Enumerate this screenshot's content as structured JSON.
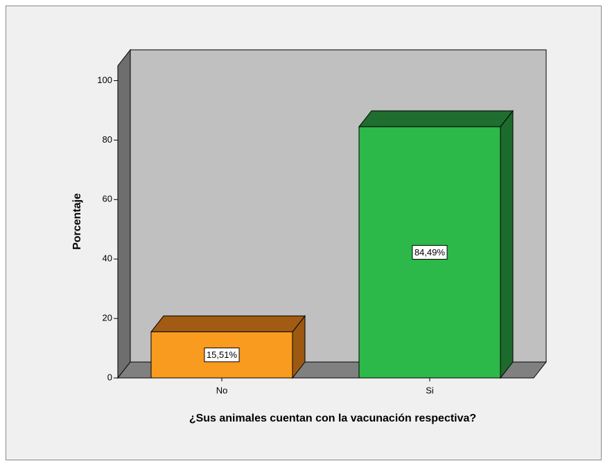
{
  "chart_data": {
    "type": "bar3d",
    "x_label": "¿Sus animales cuentan con la vacunación respectiva?",
    "y_label": "Porcentaje",
    "categories": [
      "No",
      "Si"
    ],
    "values": [
      15.51,
      84.49
    ],
    "value_labels": [
      "15,51%",
      "84,49%"
    ],
    "colors": [
      {
        "front": "#f89b1f",
        "top": "#a15b12",
        "side": "#9b5911"
      },
      {
        "front": "#2db84a",
        "top": "#1f6d2f",
        "side": "#1c6a2c"
      }
    ],
    "ylim": [
      0,
      105
    ],
    "yticks": [
      0,
      20,
      40,
      60,
      80,
      100
    ]
  }
}
